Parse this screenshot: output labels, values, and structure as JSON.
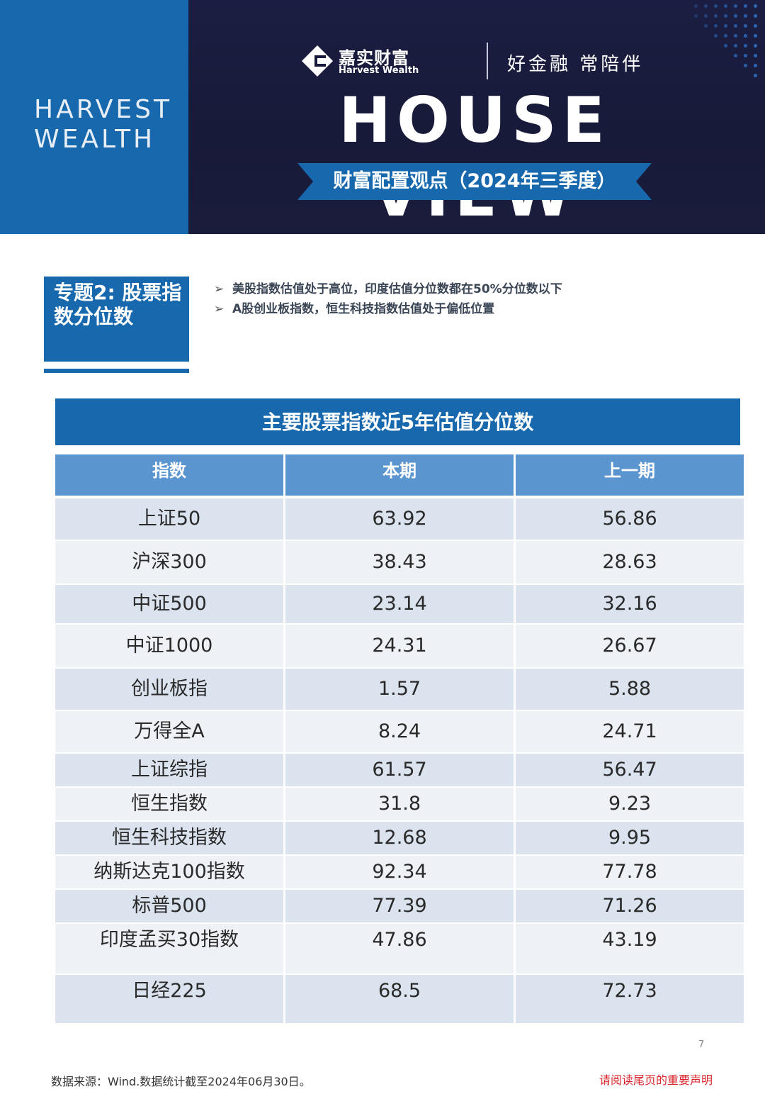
{
  "header": {
    "brand_side_line1": "HARVEST",
    "brand_side_line2": "WEALTH",
    "logo_cn": "嘉实财富",
    "logo_en": "Harvest Wealth",
    "slogan": "好金融  常陪伴",
    "headline": "HOUSE VIEW",
    "subtitle": "财富配置观点（2024年三季度）",
    "colors": {
      "brand_blue": "#1768ad",
      "banner_dark": "#16193a"
    }
  },
  "topic": {
    "label": "专题2: 股票指数分位数",
    "bullets": [
      "美股指数估值处于高位，印度估值分位数都在50%分位数以下",
      "A股创业板指数，恒生科技指数估值处于偏低位置"
    ]
  },
  "table": {
    "title": "主要股票指数近5年估值分位数",
    "columns": [
      "指数",
      "本期",
      "上一期"
    ],
    "rows": [
      [
        "上证50",
        "63.92",
        "56.86"
      ],
      [
        "沪深300",
        "38.43",
        "28.63"
      ],
      [
        "中证500",
        "23.14",
        "32.16"
      ],
      [
        "中证1000",
        "24.31",
        "26.67"
      ],
      [
        "创业板指",
        "1.57",
        "5.88"
      ],
      [
        "万得全A",
        "8.24",
        "24.71"
      ],
      [
        "上证综指",
        "61.57",
        "56.47"
      ],
      [
        "恒生指数",
        "31.8",
        "9.23"
      ],
      [
        "恒生科技指数",
        "12.68",
        "9.95"
      ],
      [
        "纳斯达克100指数",
        "92.34",
        "77.78"
      ],
      [
        "标普500",
        "77.39",
        "71.26"
      ],
      [
        "印度孟买30指数",
        "47.86",
        "43.19"
      ],
      [
        "日经225",
        "68.5",
        "72.73"
      ]
    ]
  },
  "footer": {
    "page_number": "7",
    "source": "数据来源：Wind.数据统计截至2024年06月30日。",
    "disclaimer": "请阅读尾页的重要声明",
    "disclaimer_color": "#d9262b"
  }
}
